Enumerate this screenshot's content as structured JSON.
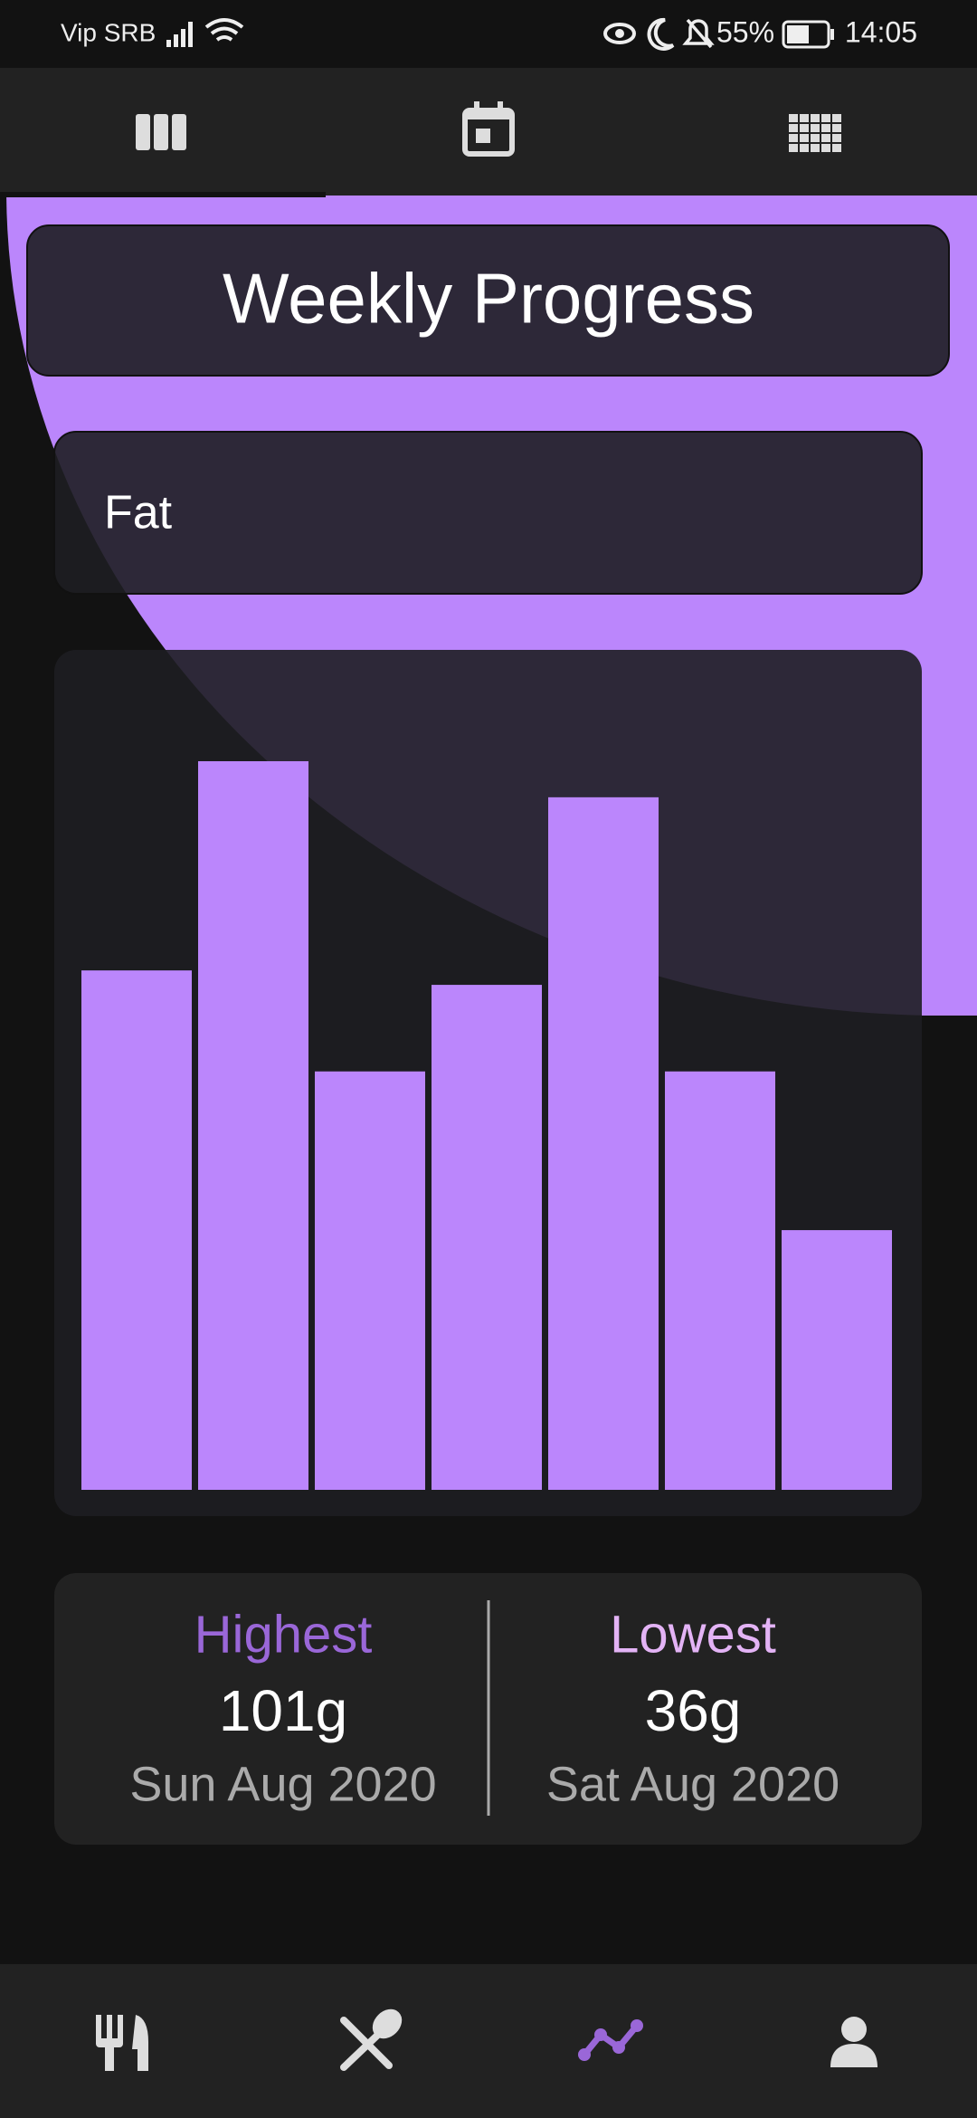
{
  "status_bar": {
    "carrier": "Vip SRB",
    "battery": "55%",
    "time": "14:05"
  },
  "header": {
    "title": "Weekly Progress"
  },
  "selector": {
    "label": "Fat"
  },
  "chart_data": {
    "type": "bar",
    "values": [
      72,
      101,
      58,
      70,
      96,
      58,
      36
    ],
    "color": "#bb86fc"
  },
  "stats": {
    "highest": {
      "label": "Highest",
      "value": "101g",
      "date": "Sun Aug 2020"
    },
    "lowest": {
      "label": "Lowest",
      "value": "36g",
      "date": "Sat Aug 2020"
    }
  }
}
